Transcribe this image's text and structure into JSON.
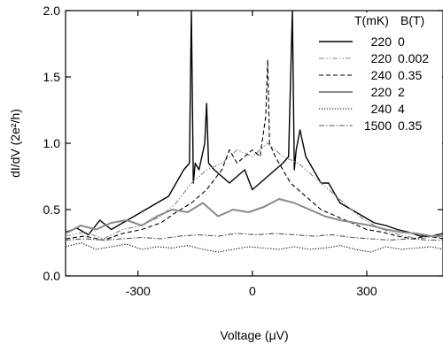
{
  "chart_data": {
    "type": "line",
    "xlabel": "Voltage (μV)",
    "ylabel": "dI/dV (2e²/h)",
    "xlim": [
      -490,
      500
    ],
    "ylim": [
      0,
      2.0
    ],
    "x_ticks": [
      -300,
      0,
      300
    ],
    "x_tick_labels": [
      "-300",
      "0",
      "300"
    ],
    "y_ticks": [
      0,
      0.5,
      1.0,
      1.5,
      2.0
    ],
    "y_tick_labels": [
      "0.0",
      "0.5",
      "1.0",
      "1.5",
      "2.0"
    ],
    "grid": false,
    "legend_position": "top-right",
    "legend_headers": [
      "T(mK)",
      "B(T)"
    ],
    "series": [
      {
        "T": "220",
        "B": "0",
        "color": "#000000",
        "style": "solid",
        "width": 1.4,
        "x": [
          -490,
          -460,
          -430,
          -400,
          -370,
          -340,
          -310,
          -280,
          -250,
          -220,
          -200,
          -180,
          -165,
          -160,
          -155,
          -150,
          -140,
          -125,
          -120,
          -115,
          -100,
          -80,
          -60,
          -40,
          -20,
          0,
          20,
          40,
          60,
          80,
          95,
          105,
          110,
          115,
          125,
          140,
          160,
          180,
          200,
          230,
          260,
          290,
          320,
          350,
          380,
          410,
          440,
          470,
          500
        ],
        "y": [
          0.33,
          0.36,
          0.31,
          0.42,
          0.35,
          0.4,
          0.45,
          0.5,
          0.55,
          0.6,
          0.7,
          0.8,
          0.85,
          2.0,
          0.7,
          0.85,
          0.8,
          1.0,
          1.3,
          0.85,
          0.8,
          0.75,
          0.7,
          0.75,
          0.8,
          0.65,
          0.7,
          0.75,
          0.8,
          0.85,
          0.9,
          2.0,
          0.8,
          0.95,
          1.1,
          0.9,
          0.8,
          0.7,
          0.7,
          0.55,
          0.5,
          0.45,
          0.4,
          0.38,
          0.35,
          0.33,
          0.3,
          0.3,
          0.32
        ]
      },
      {
        "T": "220",
        "B": "0.002",
        "color": "#888888",
        "style": "dashdotdot",
        "width": 1.1,
        "x": [
          -490,
          -440,
          -390,
          -340,
          -290,
          -240,
          -200,
          -160,
          -120,
          -80,
          -40,
          0,
          40,
          80,
          120,
          160,
          200,
          240,
          280,
          320,
          360,
          400,
          440,
          480,
          500
        ],
        "y": [
          0.3,
          0.33,
          0.28,
          0.35,
          0.38,
          0.45,
          0.55,
          0.7,
          0.8,
          0.85,
          0.95,
          0.9,
          1.0,
          0.9,
          0.85,
          0.75,
          0.65,
          0.55,
          0.45,
          0.38,
          0.33,
          0.3,
          0.28,
          0.3,
          0.28
        ]
      },
      {
        "T": "240",
        "B": "0.35",
        "color": "#000000",
        "style": "dashed",
        "width": 1.1,
        "x": [
          -490,
          -440,
          -390,
          -340,
          -290,
          -240,
          -200,
          -160,
          -120,
          -80,
          -60,
          -40,
          -20,
          0,
          20,
          35,
          40,
          45,
          60,
          80,
          100,
          140,
          180,
          220,
          260,
          300,
          340,
          380,
          420,
          460,
          500
        ],
        "y": [
          0.28,
          0.3,
          0.27,
          0.32,
          0.35,
          0.4,
          0.48,
          0.55,
          0.65,
          0.8,
          0.95,
          0.85,
          0.9,
          0.95,
          0.9,
          1.2,
          1.63,
          1.0,
          0.9,
          0.8,
          0.7,
          0.6,
          0.5,
          0.45,
          0.4,
          0.35,
          0.33,
          0.3,
          0.28,
          0.3,
          0.28
        ]
      },
      {
        "T": "220",
        "B": "2",
        "color": "#8a8a8a",
        "style": "solid",
        "width": 2.0,
        "x": [
          -490,
          -450,
          -410,
          -370,
          -330,
          -290,
          -250,
          -210,
          -170,
          -130,
          -90,
          -50,
          -10,
          30,
          70,
          110,
          150,
          190,
          230,
          270,
          310,
          350,
          390,
          430,
          470,
          500
        ],
        "y": [
          0.32,
          0.38,
          0.35,
          0.4,
          0.42,
          0.38,
          0.45,
          0.5,
          0.48,
          0.55,
          0.45,
          0.5,
          0.48,
          0.52,
          0.58,
          0.55,
          0.5,
          0.45,
          0.42,
          0.4,
          0.38,
          0.35,
          0.33,
          0.32,
          0.3,
          0.3
        ]
      },
      {
        "T": "240",
        "B": "4",
        "color": "#000000",
        "style": "dotted",
        "width": 1.1,
        "x": [
          -490,
          -450,
          -410,
          -370,
          -330,
          -290,
          -250,
          -210,
          -170,
          -130,
          -90,
          -50,
          -10,
          30,
          70,
          110,
          150,
          190,
          230,
          270,
          310,
          350,
          390,
          430,
          470,
          500
        ],
        "y": [
          0.22,
          0.25,
          0.2,
          0.22,
          0.24,
          0.2,
          0.22,
          0.21,
          0.23,
          0.2,
          0.18,
          0.2,
          0.22,
          0.21,
          0.2,
          0.22,
          0.2,
          0.21,
          0.23,
          0.2,
          0.18,
          0.22,
          0.2,
          0.21,
          0.22,
          0.2
        ]
      },
      {
        "T": "1500",
        "B": "0.35",
        "color": "#555555",
        "style": "dashdot",
        "width": 1.1,
        "x": [
          -490,
          -440,
          -390,
          -340,
          -290,
          -240,
          -190,
          -140,
          -90,
          -40,
          10,
          60,
          110,
          160,
          210,
          260,
          310,
          360,
          410,
          460,
          500
        ],
        "y": [
          0.27,
          0.28,
          0.27,
          0.28,
          0.29,
          0.28,
          0.3,
          0.31,
          0.3,
          0.32,
          0.31,
          0.32,
          0.31,
          0.3,
          0.31,
          0.29,
          0.28,
          0.27,
          0.28,
          0.27,
          0.27
        ]
      }
    ]
  }
}
